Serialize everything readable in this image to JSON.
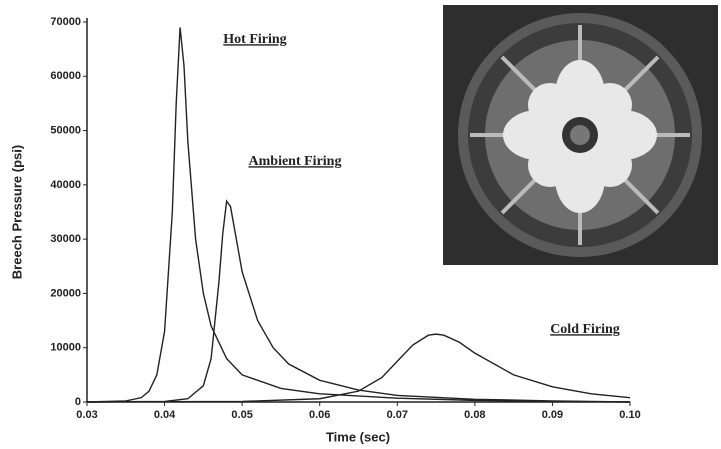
{
  "chart_data": {
    "type": "line",
    "xlabel": "Time (sec)",
    "ylabel": "Breech Pressure (psi)",
    "xlim": [
      0.03,
      0.1
    ],
    "xticks": [
      0.03,
      0.04,
      0.05,
      0.06,
      0.07,
      0.08,
      0.09,
      {
        "value": 0.1,
        "label": "0.10"
      }
    ],
    "ylim": [
      0,
      70000
    ],
    "yticks": [
      0,
      10000,
      20000,
      30000,
      40000,
      50000,
      60000,
      70000
    ],
    "grid": false,
    "series": [
      {
        "name": "Hot Firing",
        "color": "#222222",
        "x": [
          0.03,
          0.035,
          0.037,
          0.038,
          0.039,
          0.04,
          0.041,
          0.0415,
          0.042,
          0.0425,
          0.043,
          0.044,
          0.045,
          0.046,
          0.048,
          0.05,
          0.055,
          0.06,
          0.07,
          0.08,
          0.09,
          0.1
        ],
        "values": [
          0,
          200,
          800,
          2000,
          5000,
          13000,
          35000,
          55000,
          69000,
          62000,
          48000,
          30000,
          20000,
          14000,
          8000,
          5000,
          2500,
          1500,
          700,
          300,
          100,
          0
        ]
      },
      {
        "name": "Ambient Firing",
        "color": "#222222",
        "x": [
          0.03,
          0.04,
          0.043,
          0.045,
          0.046,
          0.047,
          0.0475,
          0.048,
          0.0485,
          0.049,
          0.05,
          0.052,
          0.054,
          0.056,
          0.06,
          0.065,
          0.07,
          0.08,
          0.09,
          0.1
        ],
        "values": [
          0,
          100,
          600,
          3000,
          8000,
          22000,
          31000,
          37000,
          36000,
          32000,
          24000,
          15000,
          10000,
          7000,
          4000,
          2200,
          1200,
          500,
          200,
          0
        ]
      },
      {
        "name": "Cold Firing",
        "color": "#222222",
        "x": [
          0.03,
          0.05,
          0.06,
          0.065,
          0.068,
          0.07,
          0.072,
          0.074,
          0.075,
          0.076,
          0.078,
          0.08,
          0.085,
          0.09,
          0.095,
          0.1
        ],
        "values": [
          0,
          100,
          600,
          2000,
          4500,
          7500,
          10500,
          12300,
          12500,
          12300,
          11000,
          9000,
          5000,
          2800,
          1500,
          800
        ]
      }
    ]
  }
}
